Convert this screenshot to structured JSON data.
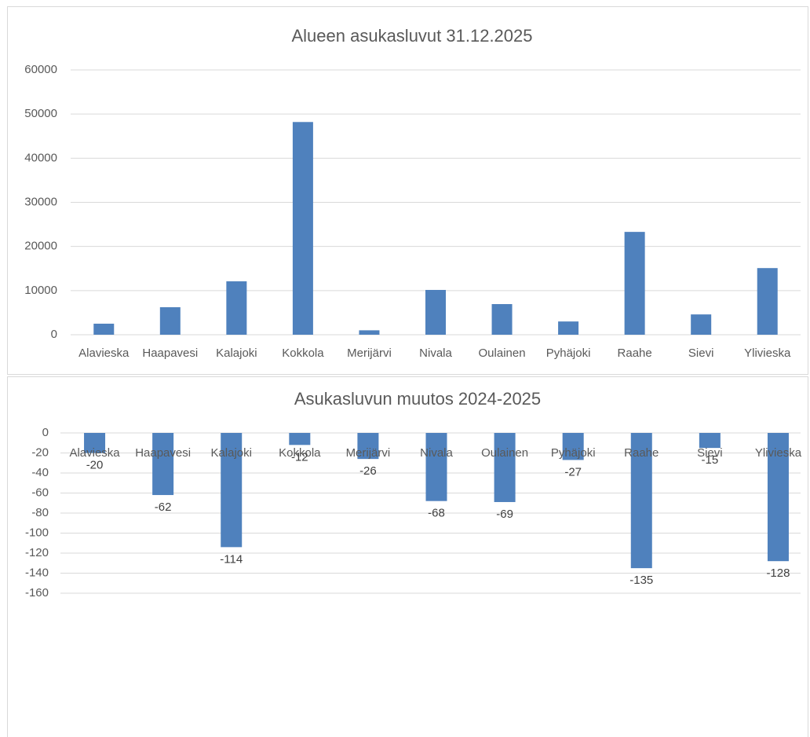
{
  "chart_data": [
    {
      "type": "bar",
      "title": "Alueen asukasluvut 31.12.2025",
      "categories": [
        "Alavieska",
        "Haapavesi",
        "Kalajoki",
        "Kokkola",
        "Merijärvi",
        "Nivala",
        "Oulainen",
        "Pyhäjoki",
        "Raahe",
        "Sievi",
        "Ylivieska"
      ],
      "values": [
        2500,
        6230,
        12100,
        48200,
        1000,
        10150,
        6940,
        3000,
        23300,
        4600,
        15100
      ],
      "color": "#4f81bd",
      "ylim": [
        0,
        60000
      ],
      "yticks": [
        0,
        10000,
        20000,
        30000,
        40000,
        50000,
        60000
      ],
      "grid": true,
      "data_labels": false
    },
    {
      "type": "bar",
      "title": "Asukasluvun muutos 2024-2025",
      "categories": [
        "Alavieska",
        "Haapavesi",
        "Kalajoki",
        "Kokkola",
        "Merijärvi",
        "Nivala",
        "Oulainen",
        "Pyhäjoki",
        "Raahe",
        "Sievi",
        "Ylivieska"
      ],
      "values": [
        -20,
        -62,
        -114,
        -12,
        -26,
        -68,
        -69,
        -27,
        -135,
        -15,
        -128
      ],
      "color": "#4f81bd",
      "ylim": [
        -160,
        0
      ],
      "yticks": [
        0,
        -20,
        -40,
        -60,
        -80,
        -100,
        -120,
        -140,
        -160
      ],
      "grid": true,
      "data_labels": true
    }
  ]
}
